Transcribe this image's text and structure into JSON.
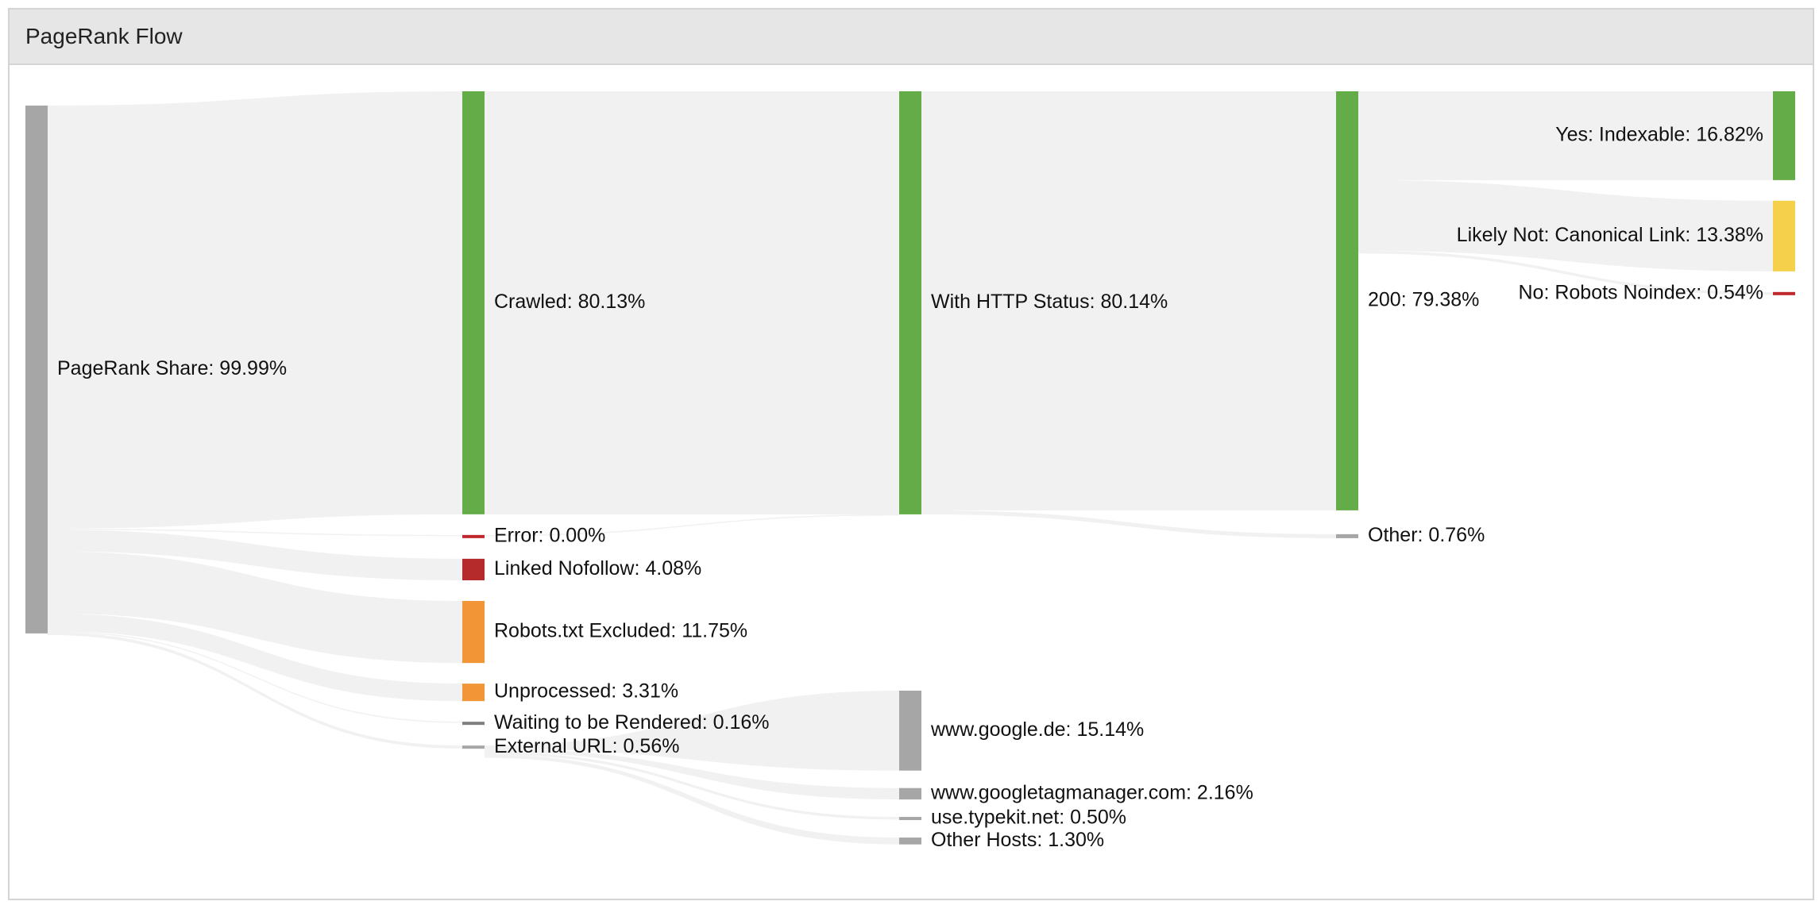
{
  "panel": {
    "title": "PageRank Flow"
  },
  "chart_data": {
    "type": "sankey",
    "nodes": [
      {
        "id": "source",
        "label": "PageRank Share: 99.99%",
        "value": 99.99,
        "color": "#a6a6a6",
        "column": 0
      },
      {
        "id": "crawled",
        "label": "Crawled: 80.13%",
        "value": 80.13,
        "color": "#64ac48",
        "column": 1
      },
      {
        "id": "error",
        "label": "Error: 0.00%",
        "value": 0.0,
        "color": "#c0282d",
        "column": 1
      },
      {
        "id": "nofollow",
        "label": "Linked Nofollow: 4.08%",
        "value": 4.08,
        "color": "#b52b2b",
        "column": 1
      },
      {
        "id": "robots",
        "label": "Robots.txt Excluded: 11.75%",
        "value": 11.75,
        "color": "#f19536",
        "column": 1
      },
      {
        "id": "unprocessed",
        "label": "Unprocessed: 3.31%",
        "value": 3.31,
        "color": "#f19536",
        "column": 1
      },
      {
        "id": "waiting",
        "label": "Waiting to be Rendered: 0.16%",
        "value": 0.16,
        "color": "#7f7f7f",
        "column": 1
      },
      {
        "id": "external",
        "label": "External URL: 0.56%",
        "value": 0.56,
        "color": "#a6a6a6",
        "column": 1
      },
      {
        "id": "http",
        "label": "With HTTP Status: 80.14%",
        "value": 80.14,
        "color": "#64ac48",
        "column": 2
      },
      {
        "id": "google",
        "label": "www.google.de: 15.14%",
        "value": 15.14,
        "color": "#a6a6a6",
        "column": 2
      },
      {
        "id": "gtm",
        "label": "www.googletagmanager.com: 2.16%",
        "value": 2.16,
        "color": "#a6a6a6",
        "column": 2
      },
      {
        "id": "typekit",
        "label": "use.typekit.net: 0.50%",
        "value": 0.5,
        "color": "#a6a6a6",
        "column": 2
      },
      {
        "id": "otherhosts",
        "label": "Other Hosts: 1.30%",
        "value": 1.3,
        "color": "#a6a6a6",
        "column": 2
      },
      {
        "id": "s200",
        "label": "200: 79.38%",
        "value": 79.38,
        "color": "#64ac48",
        "column": 3
      },
      {
        "id": "sother",
        "label": "Other: 0.76%",
        "value": 0.76,
        "color": "#a6a6a6",
        "column": 3
      },
      {
        "id": "indexable",
        "label": "Yes: Indexable: 16.82%",
        "value": 16.82,
        "color": "#64ac48",
        "column": 4
      },
      {
        "id": "canonical",
        "label": "Likely Not: Canonical Link: 13.38%",
        "value": 13.38,
        "color": "#f5d04a",
        "column": 4
      },
      {
        "id": "noindex",
        "label": "No: Robots Noindex: 0.54%",
        "value": 0.54,
        "color": "#c0282d",
        "column": 4
      }
    ],
    "links": [
      {
        "source": "source",
        "target": "crawled",
        "value": 80.13
      },
      {
        "source": "source",
        "target": "error",
        "value": 0.0
      },
      {
        "source": "source",
        "target": "nofollow",
        "value": 4.08
      },
      {
        "source": "source",
        "target": "robots",
        "value": 11.75
      },
      {
        "source": "source",
        "target": "unprocessed",
        "value": 3.31
      },
      {
        "source": "source",
        "target": "waiting",
        "value": 0.16
      },
      {
        "source": "source",
        "target": "external",
        "value": 0.56
      },
      {
        "source": "crawled",
        "target": "http",
        "value": 80.13
      },
      {
        "source": "error",
        "target": "http",
        "value": 0.0
      },
      {
        "source": "external",
        "target": "google",
        "value": 15.14
      },
      {
        "source": "external",
        "target": "gtm",
        "value": 2.16
      },
      {
        "source": "external",
        "target": "typekit",
        "value": 0.5
      },
      {
        "source": "external",
        "target": "otherhosts",
        "value": 1.3
      },
      {
        "source": "http",
        "target": "s200",
        "value": 79.38
      },
      {
        "source": "http",
        "target": "sother",
        "value": 0.76
      },
      {
        "source": "s200",
        "target": "indexable",
        "value": 16.82
      },
      {
        "source": "s200",
        "target": "canonical",
        "value": 13.38
      },
      {
        "source": "s200",
        "target": "noindex",
        "value": 0.54
      }
    ]
  }
}
